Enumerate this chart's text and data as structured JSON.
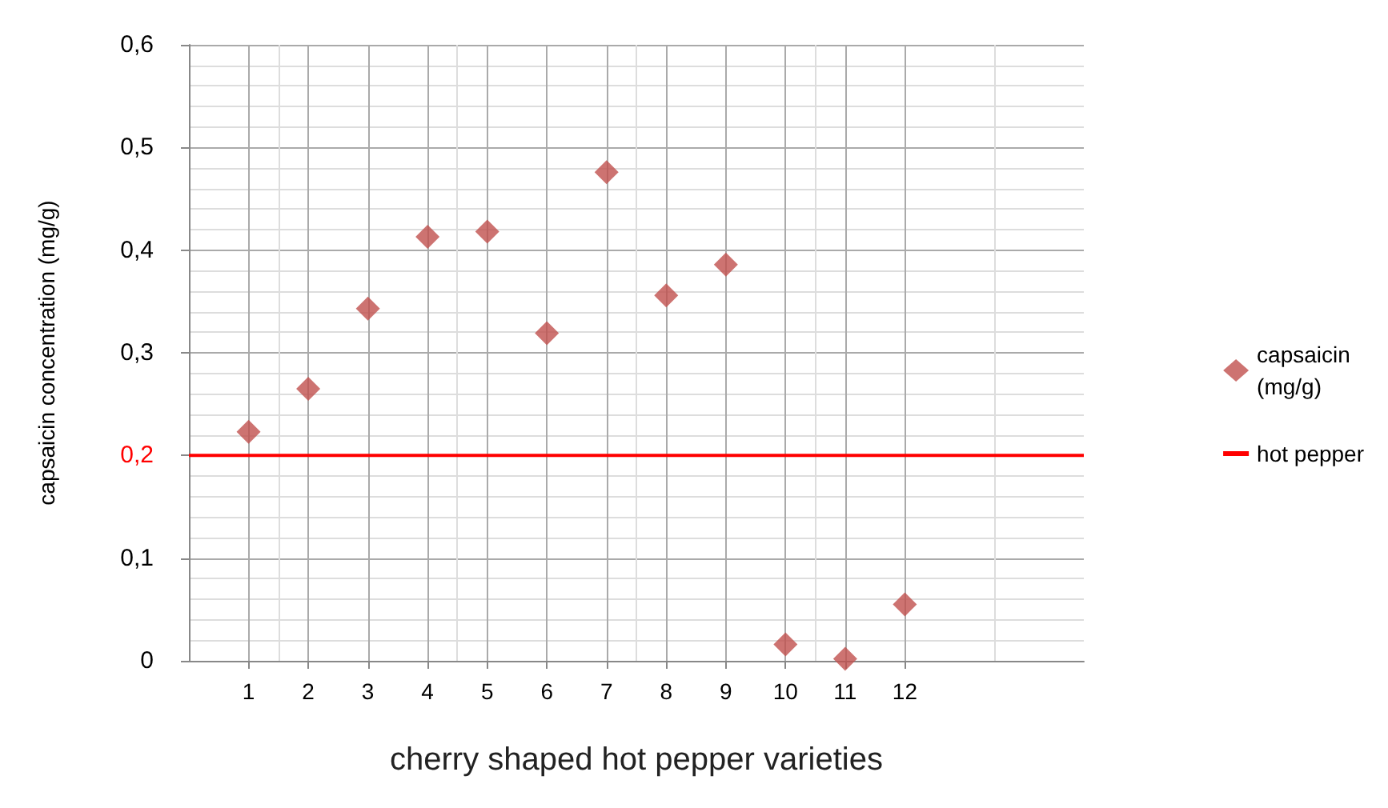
{
  "chart_data": {
    "type": "scatter",
    "xlabel": "cherry shaped hot pepper varieties",
    "ylabel": "capsaicin concentration (mg/g)",
    "x": [
      1,
      2,
      3,
      4,
      5,
      6,
      7,
      8,
      9,
      10,
      11,
      12
    ],
    "series": [
      {
        "name": "capsaicin (mg/g)",
        "color": "#c0504d",
        "values": [
          0.223,
          0.265,
          0.343,
          0.413,
          0.418,
          0.319,
          0.476,
          0.356,
          0.386,
          0.016,
          0.002,
          0.055
        ]
      },
      {
        "name": "hot pepper",
        "type": "line",
        "marker": "none",
        "color": "#ff0000",
        "x": [
          0,
          15
        ],
        "values": [
          0.2,
          0.2
        ]
      }
    ],
    "xlim": [
      0,
      15
    ],
    "xticks": [
      1,
      2,
      3,
      4,
      5,
      6,
      7,
      8,
      9,
      10,
      11,
      12
    ],
    "ylim": [
      0,
      0.6
    ],
    "yticks": [
      {
        "value": 0,
        "label": "0"
      },
      {
        "value": 0.1,
        "label": "0,1"
      },
      {
        "value": 0.2,
        "label": "0,2"
      },
      {
        "value": 0.3,
        "label": "0,3"
      },
      {
        "value": 0.4,
        "label": "0,4"
      },
      {
        "value": 0.5,
        "label": "0,5"
      },
      {
        "value": 0.6,
        "label": "0,6"
      }
    ],
    "grid": true,
    "legend": "right",
    "marker": "diamond"
  }
}
